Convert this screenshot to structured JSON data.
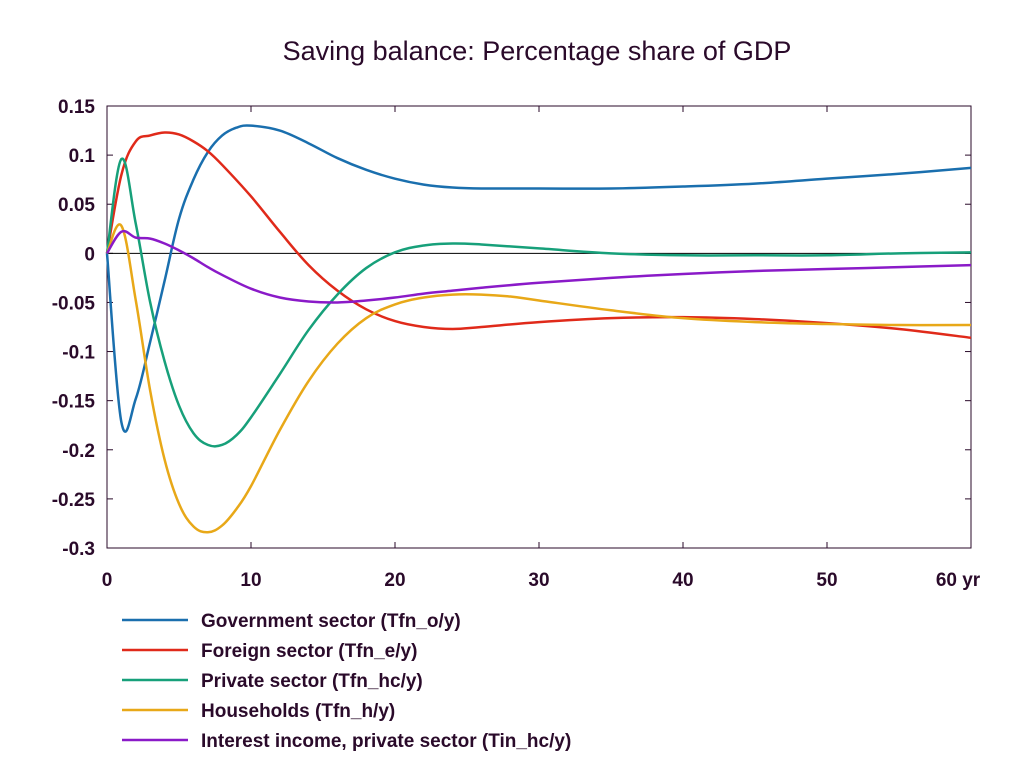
{
  "chart_data": {
    "type": "line",
    "title": "Saving balance: Percentage share of GDP",
    "xlabel": "",
    "ylabel": "",
    "x_unit_label": "yr",
    "xlim": [
      0,
      60
    ],
    "ylim": [
      -0.3,
      0.15
    ],
    "xticks": [
      0,
      10,
      20,
      30,
      40,
      50,
      60
    ],
    "xtick_labels": [
      "0",
      "10",
      "20",
      "30",
      "40",
      "50",
      "60 yr"
    ],
    "yticks": [
      0.15,
      0.1,
      0.05,
      0,
      -0.05,
      -0.1,
      -0.15,
      -0.2,
      -0.25,
      -0.3
    ],
    "ytick_labels": [
      "0.15",
      "0.1",
      "0.05",
      "0",
      "-0.05",
      "-0.1",
      "-0.15",
      "-0.2",
      "-0.25",
      "-0.3"
    ],
    "grid": false,
    "zero_line": true,
    "legend_position": "bottom-left",
    "series": [
      {
        "name": "Government sector (Tfn_o/y)",
        "color": "#1a6fae",
        "x": [
          0,
          1,
          2,
          3,
          4,
          5,
          6,
          7,
          8,
          9,
          10,
          12,
          14,
          16,
          18,
          20,
          22,
          24,
          26,
          30,
          35,
          40,
          45,
          50,
          55,
          60
        ],
        "y": [
          0,
          -0.172,
          -0.148,
          -0.09,
          -0.028,
          0.035,
          0.075,
          0.103,
          0.12,
          0.128,
          0.13,
          0.125,
          0.112,
          0.097,
          0.085,
          0.076,
          0.07,
          0.067,
          0.066,
          0.066,
          0.066,
          0.068,
          0.071,
          0.076,
          0.081,
          0.087
        ]
      },
      {
        "name": "Foreign sector (Tfn_e/y)",
        "color": "#e02a1a",
        "x": [
          0,
          1,
          2,
          3,
          4,
          5,
          6,
          7,
          8,
          10,
          12,
          14,
          16,
          18,
          20,
          22,
          24,
          26,
          30,
          35,
          40,
          45,
          50,
          55,
          60
        ],
        "y": [
          0,
          0.08,
          0.114,
          0.12,
          0.123,
          0.121,
          0.114,
          0.104,
          0.09,
          0.058,
          0.022,
          -0.012,
          -0.038,
          -0.057,
          -0.069,
          -0.075,
          -0.077,
          -0.075,
          -0.07,
          -0.066,
          -0.065,
          -0.067,
          -0.071,
          -0.077,
          -0.086
        ]
      },
      {
        "name": "Private sector (Tfn_hc/y)",
        "color": "#17a07a",
        "x": [
          0,
          1,
          2,
          3,
          4,
          5,
          6,
          7,
          8,
          9,
          10,
          12,
          14,
          16,
          18,
          20,
          22,
          24,
          26,
          30,
          35,
          40,
          45,
          50,
          55,
          60
        ],
        "y": [
          0,
          0.096,
          0.03,
          -0.05,
          -0.11,
          -0.155,
          -0.183,
          -0.195,
          -0.195,
          -0.185,
          -0.167,
          -0.123,
          -0.078,
          -0.042,
          -0.015,
          0.001,
          0.008,
          0.01,
          0.009,
          0.005,
          0.0,
          -0.002,
          -0.002,
          -0.002,
          0.0,
          0.001
        ]
      },
      {
        "name": "Households (Tfn_h/y)",
        "color": "#e8a818",
        "x": [
          0,
          1,
          2,
          3,
          4,
          5,
          6,
          7,
          8,
          9,
          10,
          12,
          14,
          16,
          18,
          20,
          22,
          24,
          26,
          28,
          30,
          35,
          40,
          45,
          50,
          55,
          60
        ],
        "y": [
          0,
          0.028,
          -0.048,
          -0.14,
          -0.21,
          -0.255,
          -0.278,
          -0.284,
          -0.277,
          -0.26,
          -0.237,
          -0.18,
          -0.13,
          -0.092,
          -0.066,
          -0.052,
          -0.045,
          -0.042,
          -0.042,
          -0.044,
          -0.048,
          -0.058,
          -0.066,
          -0.07,
          -0.072,
          -0.073,
          -0.073
        ]
      },
      {
        "name": "Interest income, private sector (Tin_hc/y)",
        "color": "#8a1ac8",
        "x": [
          0,
          1,
          2,
          3,
          4,
          5,
          6,
          7,
          8,
          10,
          12,
          14,
          16,
          18,
          20,
          22,
          24,
          26,
          30,
          35,
          40,
          45,
          50,
          55,
          60
        ],
        "y": [
          0,
          0.022,
          0.016,
          0.015,
          0.01,
          0.003,
          -0.005,
          -0.014,
          -0.022,
          -0.036,
          -0.045,
          -0.049,
          -0.05,
          -0.048,
          -0.045,
          -0.041,
          -0.038,
          -0.035,
          -0.03,
          -0.025,
          -0.021,
          -0.018,
          -0.016,
          -0.014,
          -0.012
        ]
      }
    ]
  }
}
